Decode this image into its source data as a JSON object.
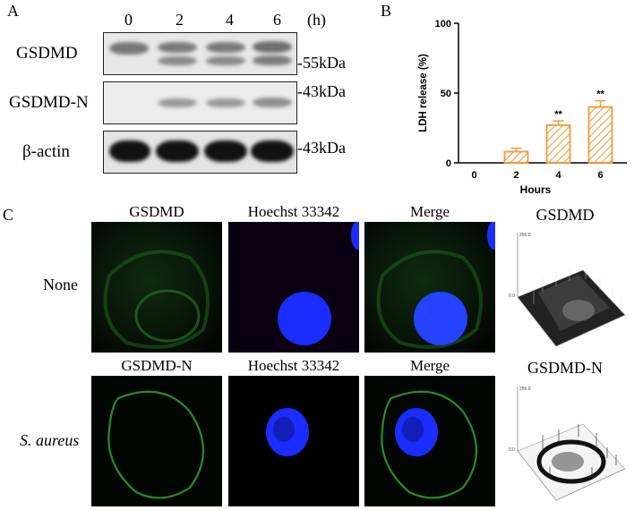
{
  "panels": {
    "a": "A",
    "b": "B",
    "c": "C"
  },
  "blot": {
    "lanes": [
      "0",
      "2",
      "4",
      "6"
    ],
    "unit": "(h)",
    "rows": [
      {
        "label": "GSDMD",
        "marker": "-55kDa"
      },
      {
        "label": "GSDMD-N",
        "marker": "-43kDa"
      },
      {
        "label": "β-actin",
        "marker": "-43kDa"
      }
    ]
  },
  "chart_data": {
    "type": "bar",
    "categories": [
      "0",
      "2",
      "4",
      "6"
    ],
    "values": [
      0,
      8,
      27,
      40
    ],
    "errors": [
      0,
      2.5,
      3,
      4.5
    ],
    "significance": [
      "",
      "",
      "**",
      "**"
    ],
    "xlabel": "Hours",
    "ylabel": "LDH release (%)",
    "ylim": [
      0,
      100
    ],
    "yticks": [
      0,
      50,
      100
    ],
    "bar_color": "#f29a3a",
    "pattern": "diagonal-hatch"
  },
  "microscopy": {
    "row1": {
      "label": "None",
      "titles": [
        "GSDMD",
        "Hoechst 33342",
        "Merge"
      ],
      "surface_title": "GSDMD"
    },
    "row2": {
      "label": "S. aureus",
      "titles": [
        "GSDMD-N",
        "Hoechst 33342",
        "Merge"
      ],
      "surface_title": "GSDMD-N"
    },
    "surface_axis": {
      "top": "255.0",
      "mid": "0.0"
    },
    "colors": {
      "gsdmd": "#3fa83f",
      "hoechst": "#1a2cff"
    }
  }
}
